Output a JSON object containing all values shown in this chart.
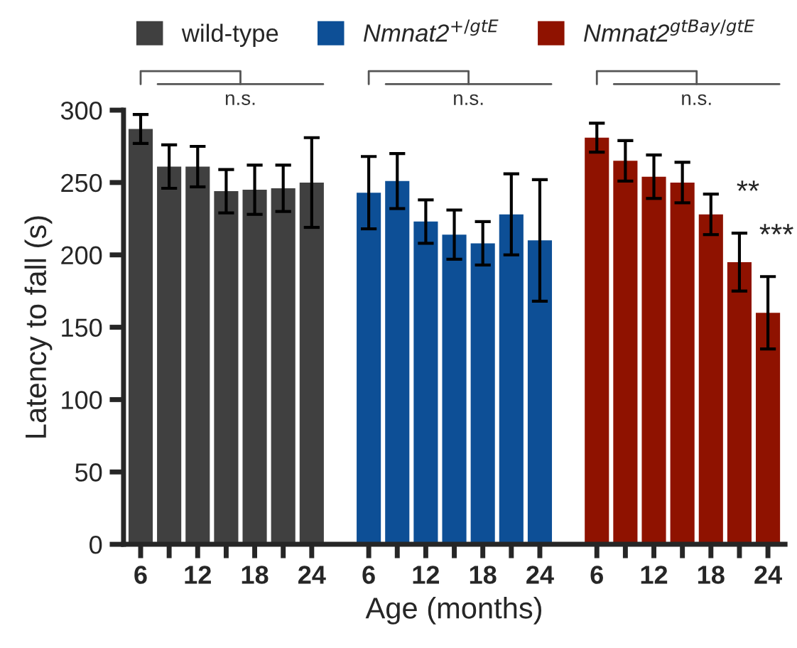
{
  "chart_data": {
    "type": "bar",
    "xlabel": "Age (months)",
    "ylabel": "Latency to fall (s)",
    "categories": [
      "6",
      null,
      "12",
      null,
      "18",
      null,
      "24",
      null,
      "6",
      null,
      "12",
      null,
      "18",
      null,
      "24",
      null,
      "6",
      null,
      "12",
      null,
      "18",
      null,
      "24"
    ],
    "series": [
      {
        "name": "wild-type",
        "color": "#404040",
        "values": [
          287,
          261,
          261,
          244,
          245,
          246,
          250,
          null,
          null,
          null,
          null,
          null,
          null,
          null,
          null,
          null,
          null,
          null,
          null,
          null,
          null,
          null,
          null
        ],
        "errors": [
          10,
          15,
          14,
          15,
          17,
          16,
          31,
          null,
          null,
          null,
          null,
          null,
          null,
          null,
          null,
          null,
          null,
          null,
          null,
          null,
          null,
          null,
          null
        ]
      },
      {
        "name": "Nmnat2$^{+/gtE}$",
        "color": "#0d4f96",
        "values": [
          null,
          null,
          null,
          null,
          null,
          null,
          null,
          null,
          243,
          251,
          223,
          214,
          208,
          228,
          210,
          null,
          null,
          null,
          null,
          null,
          null,
          null,
          null
        ],
        "errors": [
          null,
          null,
          null,
          null,
          null,
          null,
          null,
          null,
          25,
          19,
          15,
          17,
          15,
          28,
          42,
          null,
          null,
          null,
          null,
          null,
          null,
          null,
          null
        ]
      },
      {
        "name": "Nmnat2$^{gtBay/gtE}$",
        "color": "#8f1200",
        "values": [
          null,
          null,
          null,
          null,
          null,
          null,
          null,
          null,
          null,
          null,
          null,
          null,
          null,
          null,
          null,
          null,
          281,
          265,
          254,
          250,
          228,
          195,
          160
        ],
        "errors": [
          null,
          null,
          null,
          null,
          null,
          null,
          null,
          null,
          null,
          null,
          null,
          null,
          null,
          null,
          null,
          null,
          10,
          14,
          15,
          14,
          14,
          20,
          25
        ]
      }
    ],
    "annotations": [
      "n.s.",
      "n.s.",
      "n.s.",
      "**",
      "***"
    ],
    "ylim": [
      0,
      300
    ],
    "yticks": [
      0,
      50,
      100,
      150,
      200,
      250,
      300
    ],
    "legend": "top",
    "grid": false
  }
}
